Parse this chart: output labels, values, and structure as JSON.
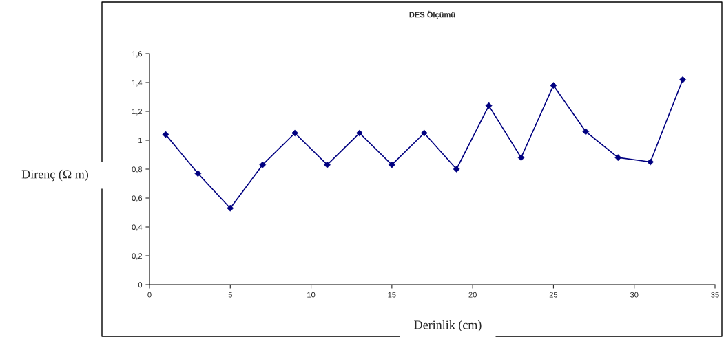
{
  "chart_data": {
    "type": "line",
    "title": "DES Ölçümü",
    "xlabel": "Derinlik (cm)",
    "ylabel": "Direnç (Ω m)",
    "x": [
      1,
      3,
      5,
      7,
      9,
      11,
      13,
      15,
      17,
      19,
      21,
      23,
      25,
      27,
      29,
      31,
      33
    ],
    "series": [
      {
        "color": "#000080",
        "values": [
          1.04,
          0.77,
          0.53,
          0.83,
          1.05,
          0.83,
          1.05,
          0.83,
          1.05,
          0.8,
          1.24,
          0.88,
          1.38,
          1.06,
          0.88,
          0.85,
          1.42
        ]
      }
    ],
    "xlim": [
      0,
      35
    ],
    "xticks": [
      0,
      5,
      10,
      15,
      20,
      25,
      30,
      35
    ],
    "ylim": [
      0,
      1.6
    ],
    "yticks": [
      0,
      {
        "value": 0.2,
        "label": "0,2"
      },
      {
        "value": 0.4,
        "label": "0,4"
      },
      {
        "value": 0.6,
        "label": "0,6"
      },
      {
        "value": 0.8,
        "label": "0,8"
      },
      1,
      {
        "value": 1.2,
        "label": "1,2"
      },
      {
        "value": 1.4,
        "label": "1,4"
      },
      {
        "value": 1.6,
        "label": "1,6"
      }
    ],
    "grid": false,
    "legend": false,
    "marker": "diamond",
    "line_style": "solid"
  }
}
